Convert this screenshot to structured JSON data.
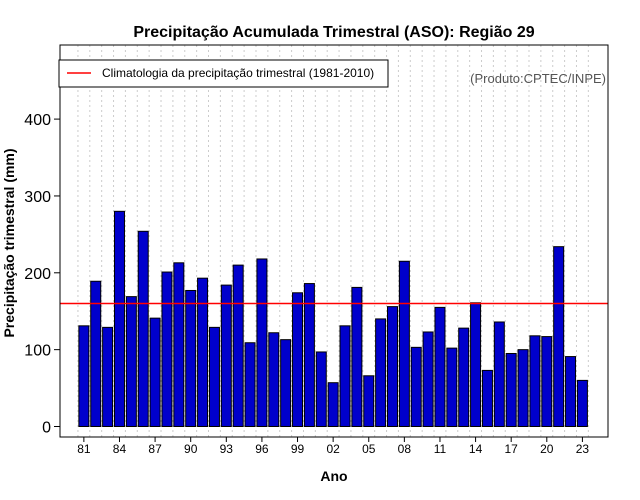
{
  "chart_data": {
    "type": "bar",
    "title": "Precipitação Acumulada Trimestral (ASO): Região 29",
    "xlabel": "Ano",
    "ylabel": "Precipitação trimestral (mm)",
    "ylim": [
      0,
      480
    ],
    "yticks": [
      0,
      100,
      200,
      300,
      400
    ],
    "grid": "vertical dotted",
    "legend_position": "top-left",
    "legend_label": "Climatologia da precipitação trimestral (1981-2010)",
    "credit": "(Produto:CPTEC/INPE)",
    "climatology_value": 160,
    "colors": {
      "bar": "#0000cc",
      "climatology": "#ff0000",
      "grid": "#cccccc"
    },
    "categories": [
      "81",
      "82",
      "83",
      "84",
      "85",
      "86",
      "87",
      "88",
      "89",
      "90",
      "91",
      "92",
      "93",
      "94",
      "95",
      "96",
      "97",
      "98",
      "99",
      "00",
      "01",
      "02",
      "03",
      "04",
      "05",
      "06",
      "07",
      "08",
      "09",
      "10",
      "11",
      "12",
      "13",
      "14",
      "15",
      "16",
      "17",
      "18",
      "19",
      "20",
      "21",
      "22",
      "23"
    ],
    "xtick_labels": [
      "81",
      "84",
      "87",
      "90",
      "93",
      "96",
      "99",
      "02",
      "05",
      "08",
      "11",
      "14",
      "17",
      "20",
      "23"
    ],
    "values": [
      131,
      189,
      129,
      280,
      169,
      254,
      141,
      201,
      213,
      177,
      193,
      129,
      184,
      210,
      109,
      218,
      122,
      113,
      174,
      186,
      97,
      57,
      131,
      181,
      66,
      140,
      156,
      215,
      103,
      123,
      155,
      102,
      128,
      161,
      73,
      136,
      95,
      100,
      118,
      117,
      234,
      91,
      60
    ]
  }
}
